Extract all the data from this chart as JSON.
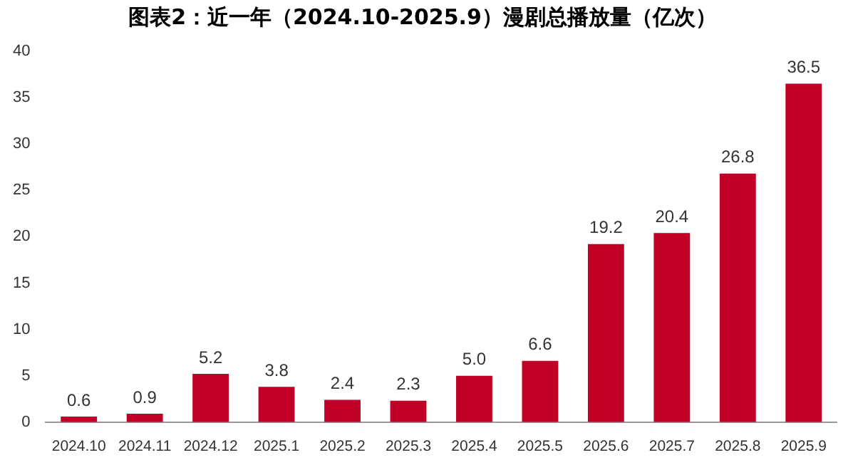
{
  "chart_data": {
    "type": "bar",
    "title": "图表2：近一年（2024.10-2025.9）漫剧总播放量（亿次）",
    "categories": [
      "2024.10",
      "2024.11",
      "2024.12",
      "2025.1",
      "2025.2",
      "2025.3",
      "2025.4",
      "2025.5",
      "2025.6",
      "2025.7",
      "2025.8",
      "2025.9"
    ],
    "values": [
      0.6,
      0.9,
      5.2,
      3.8,
      2.4,
      2.3,
      5.0,
      6.6,
      19.2,
      20.4,
      26.8,
      36.5
    ],
    "value_labels": [
      "0.6",
      "0.9",
      "5.2",
      "3.8",
      "2.4",
      "2.3",
      "5.0",
      "6.6",
      "19.2",
      "20.4",
      "26.8",
      "36.5"
    ],
    "color": "#c00026",
    "ylim": [
      0,
      40
    ],
    "yticks": [
      0,
      5,
      10,
      15,
      20,
      25,
      30,
      35,
      40
    ],
    "grid": false,
    "legend": false
  }
}
